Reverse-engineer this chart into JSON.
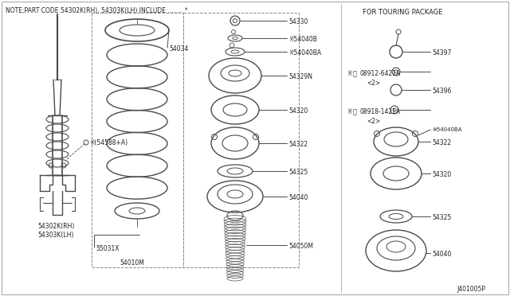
{
  "bg_color": "#ffffff",
  "line_color": "#4a4a4a",
  "note_text": "NOTE;PART CODE 54302K(RH), 54303K(LH) INCLUDE ........ *",
  "touring_title": "FOR TOURING PACKAGE",
  "diagram_number": "J401005P",
  "figsize": [
    6.4,
    3.72
  ],
  "dpi": 100
}
